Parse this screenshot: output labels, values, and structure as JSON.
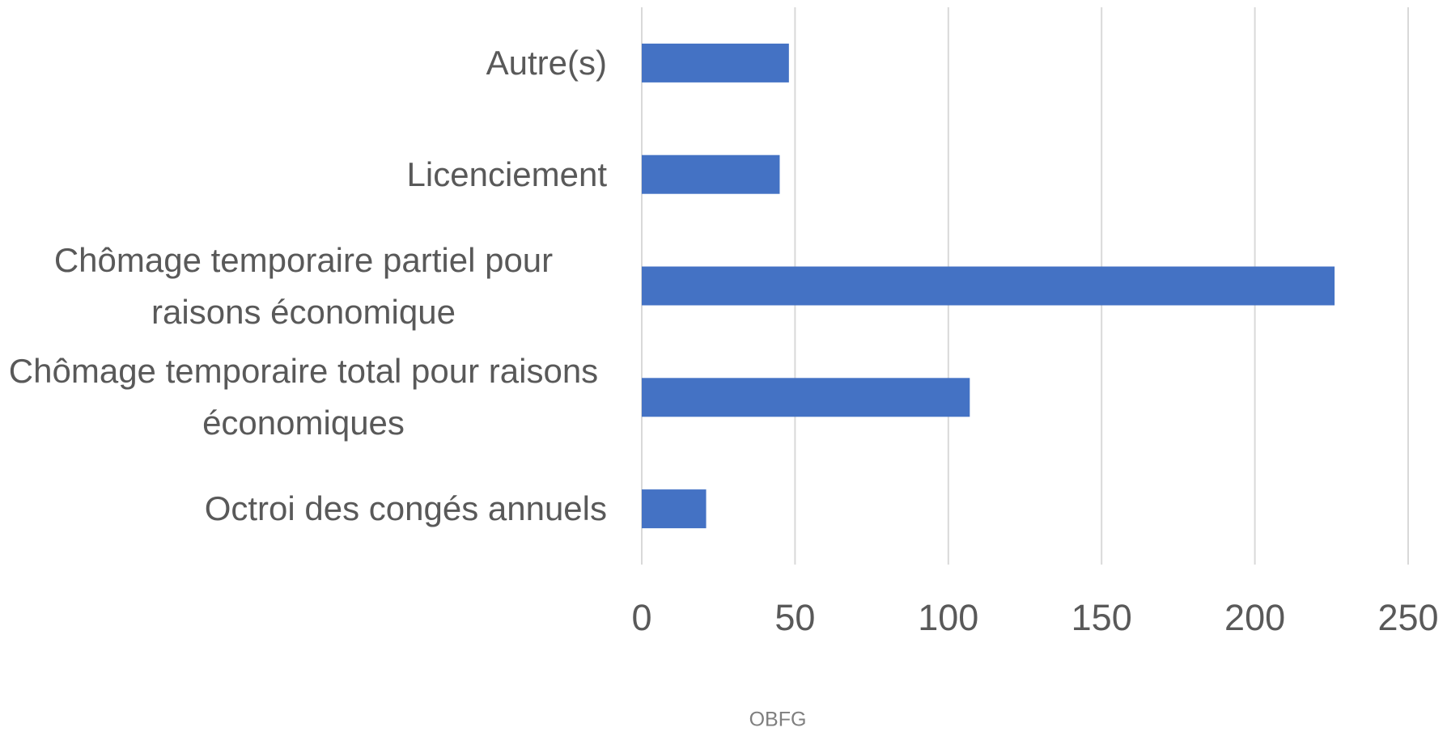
{
  "chart_data": {
    "type": "bar",
    "orientation": "horizontal",
    "categories": [
      "Autre(s)",
      "Licenciement",
      "Chômage temporaire partiel pour raisons économique",
      "Chômage temporaire total pour raisons économiques",
      "Octroi des congés annuels"
    ],
    "values": [
      48,
      45,
      226,
      107,
      21
    ],
    "color": "#4472c4",
    "xlim": [
      0,
      250
    ],
    "xticks": [
      0,
      50,
      100,
      150,
      200,
      250
    ],
    "grid": true,
    "source": "OBFG"
  }
}
